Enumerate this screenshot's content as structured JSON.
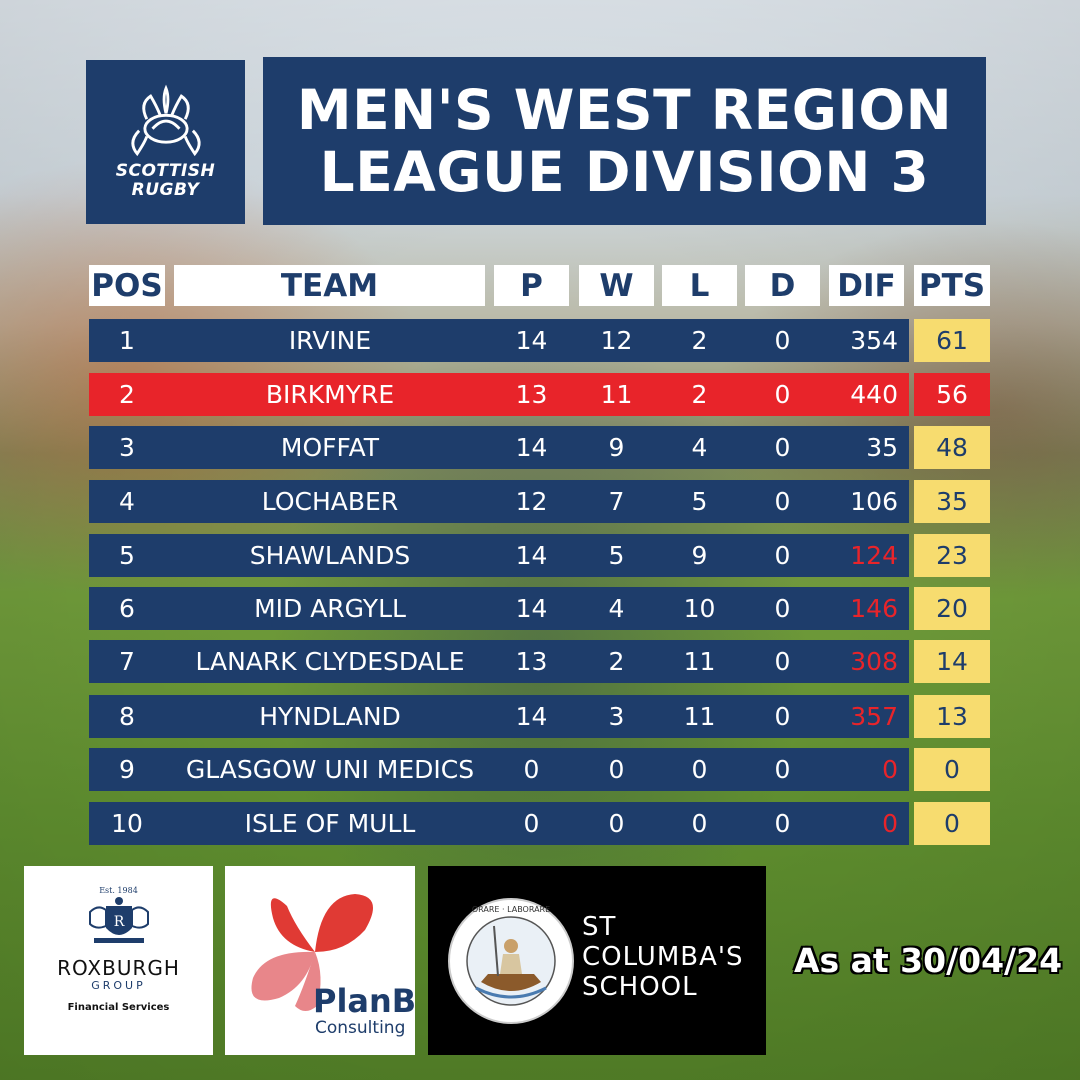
{
  "logo": {
    "line1": "SCOTTISH",
    "line2": "RUGBY"
  },
  "title": {
    "line1": "MEN'S WEST REGION",
    "line2": "LEAGUE DIVISION 3"
  },
  "table": {
    "headers": {
      "pos": "POS",
      "team": "TEAM",
      "p": "P",
      "w": "W",
      "l": "L",
      "d": "D",
      "dif": "DIF",
      "pts": "PTS"
    },
    "rows": [
      {
        "pos": "1",
        "team": "IRVINE",
        "p": "14",
        "w": "12",
        "l": "2",
        "d": "0",
        "dif": "354",
        "pts": "61"
      },
      {
        "pos": "2",
        "team": "BIRKMYRE",
        "p": "13",
        "w": "11",
        "l": "2",
        "d": "0",
        "dif": "440",
        "pts": "56"
      },
      {
        "pos": "3",
        "team": "MOFFAT",
        "p": "14",
        "w": "9",
        "l": "4",
        "d": "0",
        "dif": "35",
        "pts": "48"
      },
      {
        "pos": "4",
        "team": "LOCHABER",
        "p": "12",
        "w": "7",
        "l": "5",
        "d": "0",
        "dif": "106",
        "pts": "35"
      },
      {
        "pos": "5",
        "team": "SHAWLANDS",
        "p": "14",
        "w": "5",
        "l": "9",
        "d": "0",
        "dif": "124",
        "pts": "23"
      },
      {
        "pos": "6",
        "team": "MID ARGYLL",
        "p": "14",
        "w": "4",
        "l": "10",
        "d": "0",
        "dif": "146",
        "pts": "20"
      },
      {
        "pos": "7",
        "team": "LANARK CLYDESDALE",
        "p": "13",
        "w": "2",
        "l": "11",
        "d": "0",
        "dif": "308",
        "pts": "14"
      },
      {
        "pos": "8",
        "team": "HYNDLAND",
        "p": "14",
        "w": "3",
        "l": "11",
        "d": "0",
        "dif": "357",
        "pts": "13"
      },
      {
        "pos": "9",
        "team": "GLASGOW UNI MEDICS",
        "p": "0",
        "w": "0",
        "l": "0",
        "d": "0",
        "dif": "0",
        "pts": "0"
      },
      {
        "pos": "10",
        "team": "ISLE OF MULL",
        "p": "0",
        "w": "0",
        "l": "0",
        "d": "0",
        "dif": "0",
        "pts": "0"
      }
    ]
  },
  "sponsors": {
    "roxburgh": {
      "est": "Est. 1984",
      "name": "ROXBURGH",
      "group": "GROUP",
      "tagline": "Financial Services"
    },
    "planb": {
      "name": "PlanB",
      "sub": "Consulting"
    },
    "stcolumba": {
      "line1": "ST",
      "line2": "COLUMBA'S",
      "line3": "SCHOOL",
      "seal_text": "ORARE · LABORARE · LITTERISQUE · STUDERE"
    }
  },
  "date_label": "As at 30/04/24",
  "colors": {
    "navy": "#1e3d6b",
    "red": "#e8242a",
    "yellow": "#f7dc6f"
  }
}
